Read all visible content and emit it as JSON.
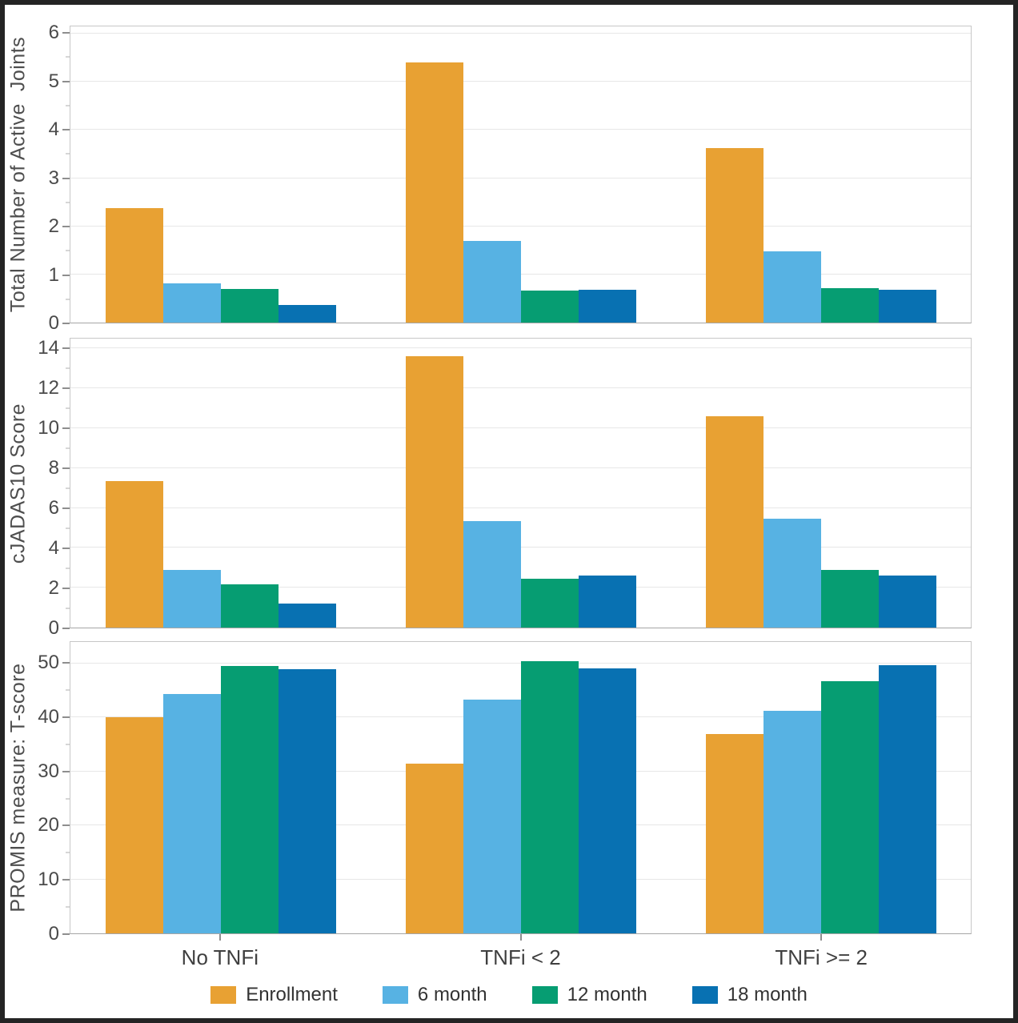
{
  "figure": {
    "frame_color": "#242424",
    "background": "#ffffff",
    "gridline_color": "#e7e7e7",
    "axis_text_color": "#4a4a4a"
  },
  "legend": [
    {
      "label": "Enrollment",
      "color": "#E8A133"
    },
    {
      "label": "6 month",
      "color": "#57B2E3"
    },
    {
      "label": "12 month",
      "color": "#069D72"
    },
    {
      "label": "18 month",
      "color": "#0871B2"
    }
  ],
  "categories": [
    "No TNFi",
    "TNFi < 2",
    "TNFi >= 2"
  ],
  "chart_data": [
    {
      "type": "bar",
      "ylabel": "Total Number of Active  Joints",
      "ylim": [
        0,
        6.15
      ],
      "yticks": [
        0,
        1,
        2,
        3,
        4,
        5,
        6
      ],
      "categories": [
        "No TNFi",
        "TNFi < 2",
        "TNFi >= 2"
      ],
      "legend_position": "bottom",
      "grid": true,
      "series": [
        {
          "name": "Enrollment",
          "values": [
            2.37,
            5.4,
            3.62
          ]
        },
        {
          "name": "6 month",
          "values": [
            0.82,
            1.69,
            1.48
          ]
        },
        {
          "name": "12 month",
          "values": [
            0.7,
            0.66,
            0.72
          ]
        },
        {
          "name": "18 month",
          "values": [
            0.36,
            0.69,
            0.69
          ]
        }
      ]
    },
    {
      "type": "bar",
      "ylabel": "cJADAS10 Score",
      "ylim": [
        0,
        14.5
      ],
      "yticks": [
        0,
        2,
        4,
        6,
        8,
        10,
        12,
        14
      ],
      "categories": [
        "No TNFi",
        "TNFi < 2",
        "TNFi >= 2"
      ],
      "legend_position": "bottom",
      "grid": true,
      "series": [
        {
          "name": "Enrollment",
          "values": [
            7.35,
            13.6,
            10.6
          ]
        },
        {
          "name": "6 month",
          "values": [
            2.9,
            5.35,
            5.45
          ]
        },
        {
          "name": "12 month",
          "values": [
            2.15,
            2.45,
            2.9
          ]
        },
        {
          "name": "18 month",
          "values": [
            1.2,
            2.6,
            2.6
          ]
        }
      ]
    },
    {
      "type": "bar",
      "ylabel": "PROMIS measure: T-score",
      "ylim": [
        0,
        54
      ],
      "yticks": [
        0,
        10,
        20,
        30,
        40,
        50
      ],
      "categories": [
        "No TNFi",
        "TNFi < 2",
        "TNFi >= 2"
      ],
      "legend_position": "bottom",
      "grid": true,
      "series": [
        {
          "name": "Enrollment",
          "values": [
            40.0,
            31.4,
            36.9
          ]
        },
        {
          "name": "6 month",
          "values": [
            44.4,
            43.3,
            41.2
          ]
        },
        {
          "name": "12 month",
          "values": [
            49.6,
            50.5,
            46.8
          ]
        },
        {
          "name": "18 month",
          "values": [
            48.9,
            49.1,
            49.7
          ]
        }
      ]
    }
  ]
}
